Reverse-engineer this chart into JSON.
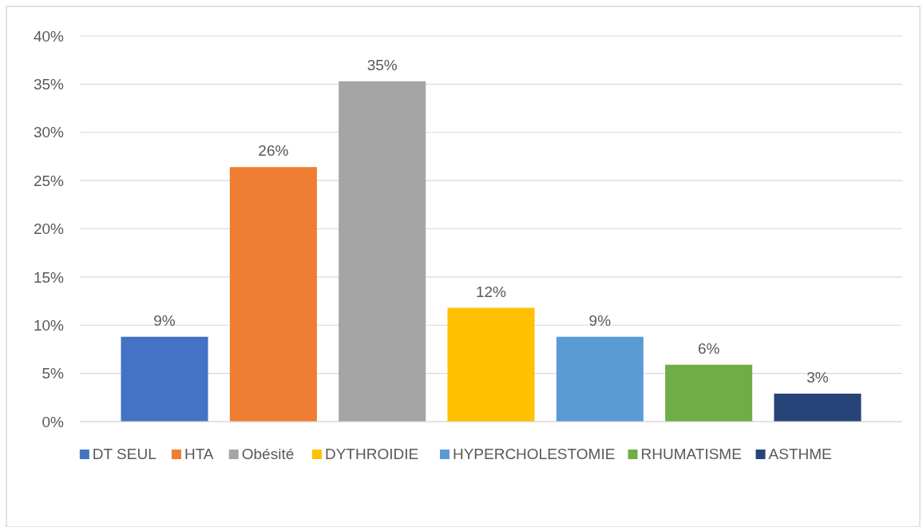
{
  "chart_data": {
    "type": "bar",
    "categories": [
      null
    ],
    "series": [
      {
        "name": "DT SEUL",
        "color": "#4472c4",
        "values": [
          8.8
        ],
        "value_labels": [
          "9%"
        ]
      },
      {
        "name": "HTA",
        "color": "#ed7d31",
        "values": [
          26.4
        ],
        "value_labels": [
          "26%"
        ]
      },
      {
        "name": "Obésité",
        "color": "#a5a5a5",
        "values": [
          35.3
        ],
        "value_labels": [
          "35%"
        ]
      },
      {
        "name": "DYTHROIDIE",
        "color": "#ffc000",
        "values": [
          11.8
        ],
        "value_labels": [
          "12%"
        ]
      },
      {
        "name": "HYPERCHOLESTOMIE",
        "color": "#5b9bd5",
        "values": [
          8.8
        ],
        "value_labels": [
          "9%"
        ]
      },
      {
        "name": "RHUMATISME",
        "color": "#70ad47",
        "values": [
          5.9
        ],
        "value_labels": [
          "6%"
        ]
      },
      {
        "name": "ASTHME",
        "color": "#264478",
        "values": [
          2.9
        ],
        "value_labels": [
          "3%"
        ]
      }
    ],
    "ylim": [
      0,
      40
    ],
    "yticks": [
      {
        "value": 0,
        "label": "0%"
      },
      {
        "value": 5,
        "label": "5%"
      },
      {
        "value": 10,
        "label": "10%"
      },
      {
        "value": 15,
        "label": "15%"
      },
      {
        "value": 20,
        "label": "20%"
      },
      {
        "value": 25,
        "label": "25%"
      },
      {
        "value": 30,
        "label": "30%"
      },
      {
        "value": 35,
        "label": "35%"
      },
      {
        "value": 40,
        "label": "40%"
      }
    ],
    "grid": "y",
    "legend": "bottom"
  }
}
